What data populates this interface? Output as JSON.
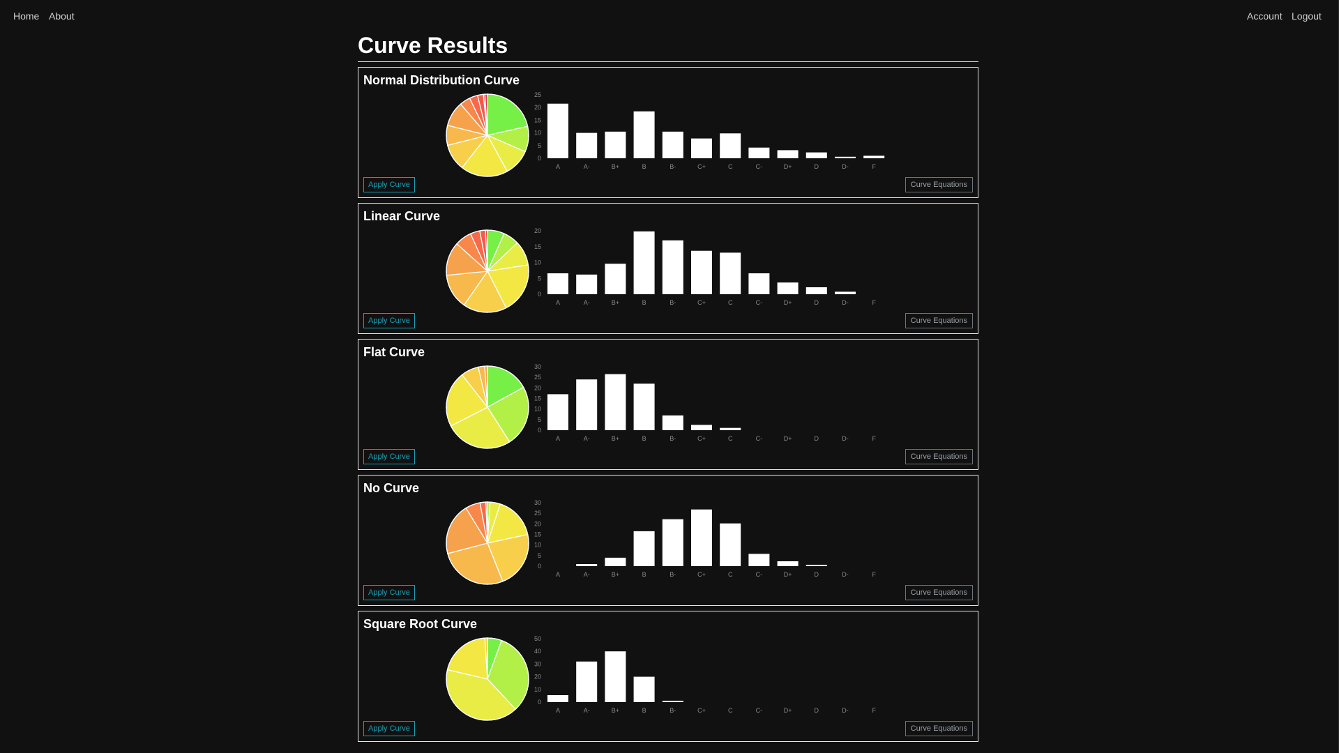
{
  "nav": {
    "home": "Home",
    "about": "About",
    "account": "Account",
    "logout": "Logout"
  },
  "page_title": "Curve Results",
  "buttons": {
    "apply": "Apply Curve",
    "equations": "Curve Equations"
  },
  "grade_colors": [
    "#76f046",
    "#b3f047",
    "#e9ec45",
    "#f3e744",
    "#f7cf4a",
    "#f7b84c",
    "#f6a24c",
    "#f7874a",
    "#f6694a",
    "#f45a4a",
    "#ee4a4a",
    "#e23550"
  ],
  "chart_data": [
    {
      "type": "bar",
      "title": "Normal Distribution Curve",
      "categories": [
        "A",
        "A-",
        "B+",
        "B",
        "B-",
        "C+",
        "C",
        "C-",
        "D+",
        "D",
        "D-",
        "F"
      ],
      "values": [
        21.5,
        10,
        10.5,
        18.5,
        10.5,
        7.8,
        9.8,
        4.2,
        3.2,
        2.3,
        0.6,
        1
      ],
      "yticks": [
        0,
        5,
        10,
        15,
        20,
        25
      ],
      "ylim": [
        0,
        25
      ],
      "pie": true
    },
    {
      "type": "bar",
      "title": "Linear Curve",
      "categories": [
        "A",
        "A-",
        "B+",
        "B",
        "B-",
        "C+",
        "C",
        "C-",
        "D+",
        "D",
        "D-",
        "F"
      ],
      "values": [
        6.6,
        6.2,
        9.6,
        19.8,
        17,
        13.7,
        13.1,
        6.6,
        3.7,
        2.2,
        0.8,
        0
      ],
      "yticks": [
        0,
        5,
        10,
        15,
        20
      ],
      "ylim": [
        0,
        20
      ],
      "pie": true
    },
    {
      "type": "bar",
      "title": "Flat Curve",
      "categories": [
        "A",
        "A-",
        "B+",
        "B",
        "B-",
        "C+",
        "C",
        "C-",
        "D+",
        "D",
        "D-",
        "F"
      ],
      "values": [
        17,
        24,
        26.5,
        22,
        7,
        2.5,
        1.1,
        0,
        0,
        0,
        0,
        0
      ],
      "yticks": [
        0,
        5,
        10,
        15,
        20,
        25,
        30
      ],
      "ylim": [
        0,
        30
      ],
      "pie": true
    },
    {
      "type": "bar",
      "title": "No Curve",
      "categories": [
        "A",
        "A-",
        "B+",
        "B",
        "B-",
        "C+",
        "C",
        "C-",
        "D+",
        "D",
        "D-",
        "F"
      ],
      "values": [
        0,
        1,
        4,
        16.5,
        22.2,
        26.8,
        20.2,
        5.8,
        2.3,
        0.6,
        0,
        0
      ],
      "yticks": [
        0,
        5,
        10,
        15,
        20,
        25,
        30
      ],
      "ylim": [
        0,
        30
      ],
      "pie": true
    },
    {
      "type": "bar",
      "title": "Square Root Curve",
      "categories": [
        "A",
        "A-",
        "B+",
        "B",
        "B-",
        "C+",
        "C",
        "C-",
        "D+",
        "D",
        "D-",
        "F"
      ],
      "values": [
        5.5,
        32,
        40,
        20,
        1,
        0,
        0,
        0,
        0,
        0,
        0,
        0
      ],
      "yticks": [
        0,
        10,
        20,
        30,
        40,
        50
      ],
      "ylim": [
        0,
        50
      ],
      "pie": true
    }
  ]
}
